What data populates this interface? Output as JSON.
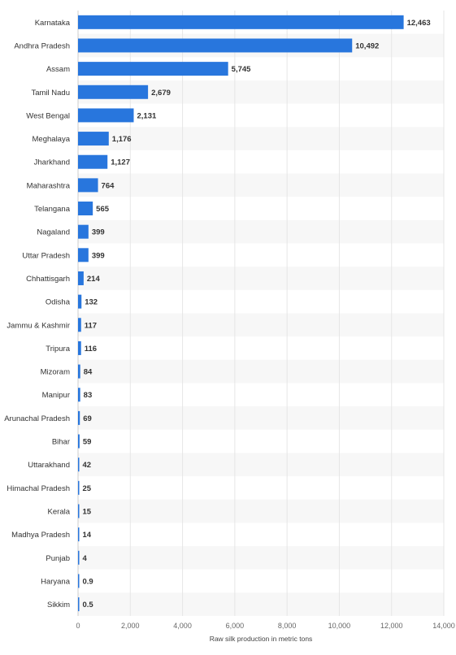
{
  "chart_data": {
    "type": "bar",
    "orientation": "horizontal",
    "categories": [
      "Karnataka",
      "Andhra Pradesh",
      "Assam",
      "Tamil Nadu",
      "West Bengal",
      "Meghalaya",
      "Jharkhand",
      "Maharashtra",
      "Telangana",
      "Nagaland",
      "Uttar Pradesh",
      "Chhattisgarh",
      "Odisha",
      "Jammu & Kashmir",
      "Tripura",
      "Mizoram",
      "Manipur",
      "Arunachal Pradesh",
      "Bihar",
      "Uttarakhand",
      "Himachal Pradesh",
      "Kerala",
      "Madhya Pradesh",
      "Punjab",
      "Haryana",
      "Sikkim"
    ],
    "values": [
      12463,
      10492,
      5745,
      2679,
      2131,
      1176,
      1127,
      764,
      565,
      399,
      399,
      214,
      132,
      117,
      116,
      84,
      83,
      69,
      59,
      42,
      25,
      15,
      14,
      4,
      0.9,
      0.5
    ],
    "value_labels": [
      "12,463",
      "10,492",
      "5,745",
      "2,679",
      "2,131",
      "1,176",
      "1,127",
      "764",
      "565",
      "399",
      "399",
      "214",
      "132",
      "117",
      "116",
      "84",
      "83",
      "69",
      "59",
      "42",
      "25",
      "15",
      "14",
      "4",
      "0.9",
      "0.5"
    ],
    "xlabel": "Raw silk production in metric tons",
    "xlim": [
      0,
      14000
    ],
    "xticks": [
      0,
      2000,
      4000,
      6000,
      8000,
      10000,
      12000,
      14000
    ],
    "xtick_labels": [
      "0",
      "2,000",
      "4,000",
      "6,000",
      "8,000",
      "10,000",
      "12,000",
      "14,000"
    ],
    "bar_color": "#2876dd",
    "alt_row_color": "#f7f7f7",
    "grid": true
  }
}
